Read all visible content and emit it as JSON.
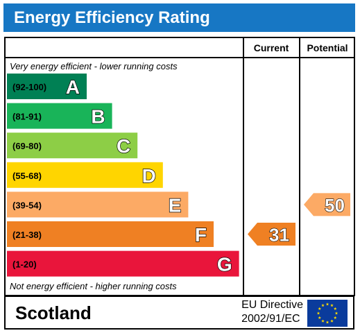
{
  "title": "Energy Efficiency Rating",
  "columns": {
    "current": "Current",
    "potential": "Potential"
  },
  "top_note": "Very energy efficient - lower running costs",
  "bottom_note": "Not energy efficient - higher running costs",
  "footer": {
    "region": "Scotland",
    "directive_line1": "EU Directive",
    "directive_line2": "2002/91/EC",
    "flag_icon": "eu-flag-icon"
  },
  "chart_data": {
    "type": "bar",
    "bands": [
      {
        "letter": "A",
        "range": "(92-100)",
        "color": "#008054"
      },
      {
        "letter": "B",
        "range": "(81-91)",
        "color": "#19b459"
      },
      {
        "letter": "C",
        "range": "(69-80)",
        "color": "#8dce46"
      },
      {
        "letter": "D",
        "range": "(55-68)",
        "color": "#ffd500"
      },
      {
        "letter": "E",
        "range": "(39-54)",
        "color": "#fcaa65"
      },
      {
        "letter": "F",
        "range": "(21-38)",
        "color": "#ef8023"
      },
      {
        "letter": "G",
        "range": "(1-20)",
        "color": "#e9153b"
      }
    ],
    "current": {
      "value": 31,
      "band": "F",
      "color": "#ef8023"
    },
    "potential": {
      "value": 50,
      "band": "E",
      "color": "#fcaa65"
    }
  }
}
